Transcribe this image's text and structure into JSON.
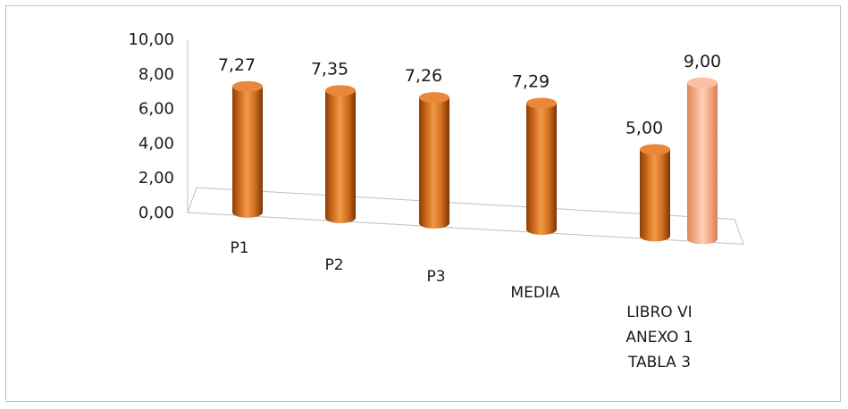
{
  "chart_data": {
    "type": "bar",
    "style": "3d-cylinder",
    "categories": [
      "P1",
      "P2",
      "P3",
      "MEDIA",
      "LIBRO VI ANEXO 1 TABLA 3"
    ],
    "category_lines": [
      [
        "P1"
      ],
      [
        "P2"
      ],
      [
        "P3"
      ],
      [
        "MEDIA"
      ],
      [
        "LIBRO VI",
        "ANEXO 1",
        "TABLA 3"
      ]
    ],
    "values": [
      7.27,
      7.35,
      7.26,
      7.29,
      5.0
    ],
    "value_labels": [
      "7,27",
      "7,35",
      "7,26",
      "7,29",
      "5,00"
    ],
    "extra_bar": {
      "category": "LIBRO VI ANEXO 1 TABLA 3",
      "value": 9.0,
      "label": "9,00"
    },
    "ylim": [
      0,
      10
    ],
    "y_ticks": [
      0,
      2,
      4,
      6,
      8,
      10
    ],
    "y_tick_labels": [
      "0,00",
      "2,00",
      "4,00",
      "6,00",
      "8,00",
      "10,00"
    ],
    "title": "",
    "xlabel": "",
    "ylabel": "",
    "legend": "none",
    "grid": false,
    "colors": {
      "primary": "#e07a1f",
      "secondary": "#f8b58e",
      "axis": "#bfbfbf"
    }
  }
}
